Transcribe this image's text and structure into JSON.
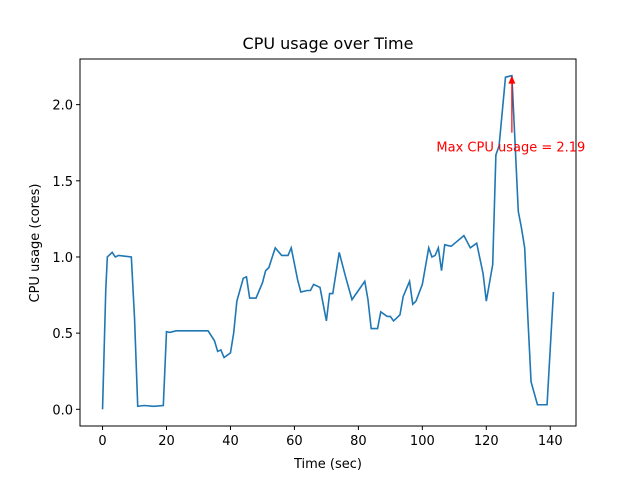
{
  "chart_data": {
    "type": "line",
    "title": "CPU usage over Time",
    "xlabel": "Time (sec)",
    "ylabel": "CPU usage (cores)",
    "x": [
      0,
      1,
      1.5,
      3,
      4,
      5,
      9,
      10,
      11,
      13,
      16,
      19,
      20,
      21,
      23,
      33,
      35,
      36,
      37,
      38,
      40,
      41,
      42,
      44,
      45,
      46,
      48,
      50,
      51,
      52,
      54,
      56,
      58,
      59,
      61,
      62,
      64,
      65,
      66,
      68,
      70,
      71,
      72,
      74,
      76,
      78,
      80,
      82,
      83,
      84,
      86,
      87,
      89,
      90,
      91,
      93,
      94,
      96,
      97,
      98,
      100,
      102,
      103,
      104,
      105,
      106,
      107,
      109,
      113,
      115,
      117,
      119,
      120,
      122,
      123,
      124,
      126,
      128,
      130,
      131,
      132,
      133,
      134,
      136,
      139,
      141
    ],
    "series": [
      {
        "color": "#1f77b4",
        "values": [
          0,
          0.78,
          1.0,
          1.03,
          1.0,
          1.01,
          1.0,
          0.6,
          0.02,
          0.025,
          0.02,
          0.025,
          0.51,
          0.505,
          0.515,
          0.515,
          0.45,
          0.38,
          0.39,
          0.34,
          0.37,
          0.5,
          0.71,
          0.86,
          0.87,
          0.73,
          0.73,
          0.83,
          0.91,
          0.93,
          1.06,
          1.01,
          1.01,
          1.06,
          0.85,
          0.77,
          0.78,
          0.78,
          0.82,
          0.8,
          0.58,
          0.76,
          0.76,
          1.03,
          0.87,
          0.72,
          0.78,
          0.84,
          0.72,
          0.53,
          0.53,
          0.64,
          0.61,
          0.61,
          0.58,
          0.62,
          0.74,
          0.84,
          0.69,
          0.71,
          0.82,
          1.06,
          1.0,
          1.01,
          1.06,
          0.91,
          1.08,
          1.07,
          1.14,
          1.06,
          1.09,
          0.89,
          0.71,
          0.95,
          1.67,
          1.73,
          2.18,
          2.19,
          1.3,
          1.19,
          1.06,
          0.6,
          0.18,
          0.03,
          0.03,
          0.77
        ]
      }
    ],
    "xlim": [
      -7.05,
      148.05
    ],
    "xticks": [
      0,
      20,
      40,
      60,
      80,
      100,
      120,
      140
    ],
    "ylim": [
      -0.1095,
      2.2995
    ],
    "yticks": [
      {
        "value": 0,
        "label": "0.0"
      },
      {
        "value": 0.5,
        "label": "0.5"
      },
      {
        "value": 1,
        "label": "1.0"
      },
      {
        "value": 1.5,
        "label": "1.5"
      },
      {
        "value": 2,
        "label": "2.0"
      }
    ],
    "annotation": {
      "text": "Max CPU usage = 2.19",
      "x": 128,
      "y": 2.19,
      "color": "red"
    }
  }
}
